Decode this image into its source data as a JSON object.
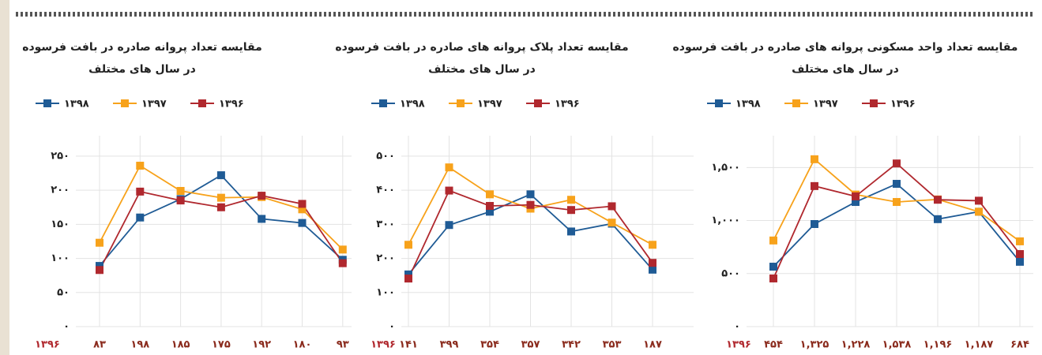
{
  "chart_data": [
    {
      "type": "line",
      "title": "مقایسه تعداد پروانه صادره در بافت فرسوده",
      "subtitle": "در سال های مختلف",
      "ylim": [
        0,
        280
      ],
      "yticks": [
        {
          "value": 0,
          "label": "۰"
        },
        {
          "value": 50,
          "label": "۵۰"
        },
        {
          "value": 100,
          "label": "۱۰۰"
        },
        {
          "value": 150,
          "label": "۱۵۰"
        },
        {
          "value": 200,
          "label": "۲۰۰"
        },
        {
          "value": 250,
          "label": "۲۵۰"
        }
      ],
      "grid": true,
      "series": [
        {
          "name": "۱۳۹۸",
          "color": "#1f5b95",
          "values": [
            89,
            160,
            187,
            222,
            158,
            152,
            98
          ]
        },
        {
          "name": "۱۳۹۷",
          "color": "#f7a21b",
          "values": [
            123,
            236,
            199,
            189,
            190,
            172,
            113
          ]
        },
        {
          "name": "۱۳۹۶",
          "color": "#b0282e",
          "values": [
            83,
            198,
            185,
            175,
            192,
            180,
            93
          ],
          "value_labels": [
            "۸۳",
            "۱۹۸",
            "۱۸۵",
            "۱۷۵",
            "۱۹۲",
            "۱۸۰",
            "۹۳"
          ]
        }
      ]
    },
    {
      "type": "line",
      "title": "مقایسه تعداد پلاک پروانه های صادره در بافت فرسوده",
      "subtitle": "در سال های مختلف",
      "ylim": [
        0,
        560
      ],
      "yticks": [
        {
          "value": 0,
          "label": "۰"
        },
        {
          "value": 100,
          "label": "۱۰۰"
        },
        {
          "value": 200,
          "label": "۲۰۰"
        },
        {
          "value": 300,
          "label": "۳۰۰"
        },
        {
          "value": 400,
          "label": "۴۰۰"
        },
        {
          "value": 500,
          "label": "۵۰۰"
        }
      ],
      "grid": true,
      "series": [
        {
          "name": "۱۳۹۸",
          "color": "#1f5b95",
          "values": [
            153,
            298,
            337,
            388,
            279,
            302,
            167
          ]
        },
        {
          "name": "۱۳۹۷",
          "color": "#f7a21b",
          "values": [
            240,
            467,
            388,
            346,
            372,
            305,
            240
          ]
        },
        {
          "name": "۱۳۹۶",
          "color": "#b0282e",
          "values": [
            141,
            399,
            354,
            357,
            342,
            353,
            187
          ],
          "value_labels": [
            "۱۴۱",
            "۳۹۹",
            "۳۵۴",
            "۳۵۷",
            "۳۴۲",
            "۳۵۳",
            "۱۸۷"
          ]
        }
      ]
    },
    {
      "type": "line",
      "title": "مقایسه تعداد واحد مسکونی پروانه های صادره در بافت فرسوده",
      "subtitle": "در سال های مختلف",
      "ylim": [
        0,
        1800
      ],
      "yticks": [
        {
          "value": 0,
          "label": "۰"
        },
        {
          "value": 500,
          "label": "۵۰۰"
        },
        {
          "value": 1000,
          "label": "۱,۰۰۰"
        },
        {
          "value": 1500,
          "label": "۱,۵۰۰"
        }
      ],
      "grid": true,
      "series": [
        {
          "name": "۱۳۹۸",
          "color": "#1f5b95",
          "values": [
            565,
            967,
            1175,
            1346,
            1013,
            1083,
            611
          ]
        },
        {
          "name": "۱۳۹۷",
          "color": "#f7a21b",
          "values": [
            812,
            1578,
            1245,
            1175,
            1199,
            1083,
            804
          ]
        },
        {
          "name": "۱۳۹۶",
          "color": "#b0282e",
          "values": [
            454,
            1325,
            1228,
            1538,
            1196,
            1187,
            684
          ],
          "value_labels": [
            "۴۵۴",
            "۱,۳۲۵",
            "۱,۲۲۸",
            "۱,۵۳۸",
            "۱,۱۹۶",
            "۱,۱۸۷",
            "۶۸۴"
          ]
        }
      ]
    }
  ]
}
